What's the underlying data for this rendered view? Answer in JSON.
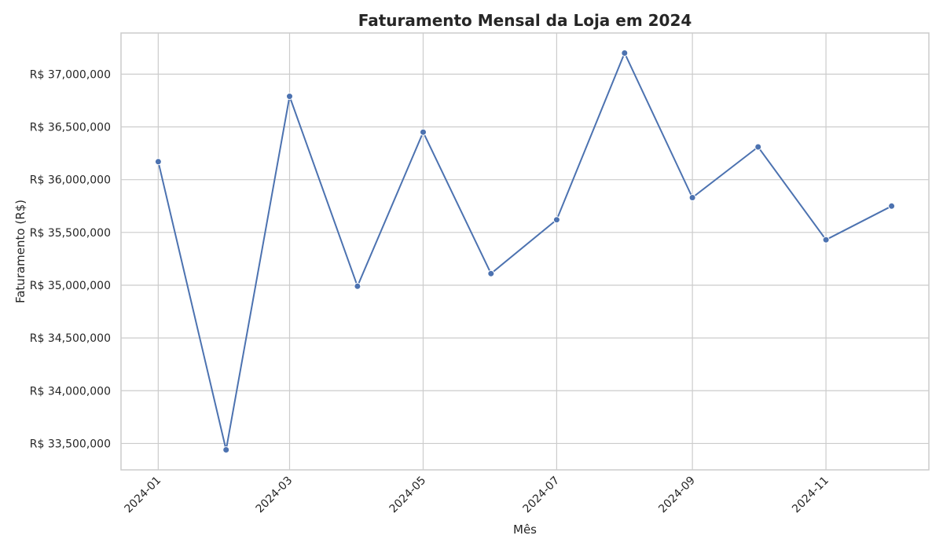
{
  "chart_data": {
    "type": "line",
    "title": "Faturamento Mensal da Loja em 2024",
    "xlabel": "Mês",
    "ylabel": "Faturamento (R$)",
    "x": [
      "2024-01-01",
      "2024-02-01",
      "2024-03-01",
      "2024-04-01",
      "2024-05-01",
      "2024-06-01",
      "2024-07-01",
      "2024-08-01",
      "2024-09-01",
      "2024-10-01",
      "2024-11-01",
      "2024-12-01"
    ],
    "values": [
      36170000,
      33440000,
      36790000,
      34990000,
      36450000,
      35110000,
      35620000,
      37200000,
      35830000,
      36310000,
      35430000,
      35750000
    ],
    "xticks": [
      "2024-01-01",
      "2024-03-01",
      "2024-05-01",
      "2024-07-01",
      "2024-09-01",
      "2024-11-01"
    ],
    "xtick_labels": [
      "2024-01",
      "2024-03",
      "2024-05",
      "2024-07",
      "2024-09",
      "2024-11"
    ],
    "yticks": [
      33500000,
      34000000,
      34500000,
      35000000,
      35500000,
      36000000,
      36500000,
      37000000
    ],
    "ytick_labels": [
      "R$ 33,500,000",
      "R$ 34,000,000",
      "R$ 34,500,000",
      "R$ 35,000,000",
      "R$ 35,500,000",
      "R$ 36,000,000",
      "R$ 36,500,000",
      "R$ 37,000,000"
    ],
    "xlim": [
      "2023-12-15",
      "2024-12-18"
    ],
    "ylim": [
      33250000,
      37390000
    ],
    "grid": true,
    "colors": {
      "series": "#4c72b0",
      "grid": "#cccccc",
      "text": "#262626"
    }
  }
}
